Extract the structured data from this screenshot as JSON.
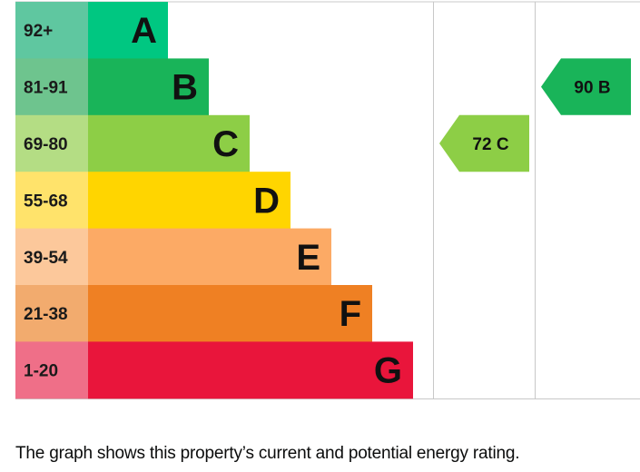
{
  "chart_data": {
    "type": "bar",
    "categories": [
      "A",
      "B",
      "C",
      "D",
      "E",
      "F",
      "G"
    ],
    "ranges": [
      "92+",
      "81-91",
      "69-80",
      "55-68",
      "39-54",
      "21-38",
      "1-20"
    ],
    "colors": [
      "#00c781",
      "#19b459",
      "#8dce46",
      "#ffd500",
      "#fcaa65",
      "#ef8023",
      "#e9153b"
    ],
    "range_colors": [
      "#5fc7a0",
      "#6ec48e",
      "#b4dd84",
      "#ffe36b",
      "#fcc89b",
      "#f2ab6e",
      "#ef6f88"
    ],
    "current": {
      "value": 72,
      "band": "C",
      "label": "72 C"
    },
    "potential": {
      "value": 90,
      "band": "B",
      "label": "90 B"
    }
  },
  "caption": "The graph shows this property’s current and potential energy rating."
}
